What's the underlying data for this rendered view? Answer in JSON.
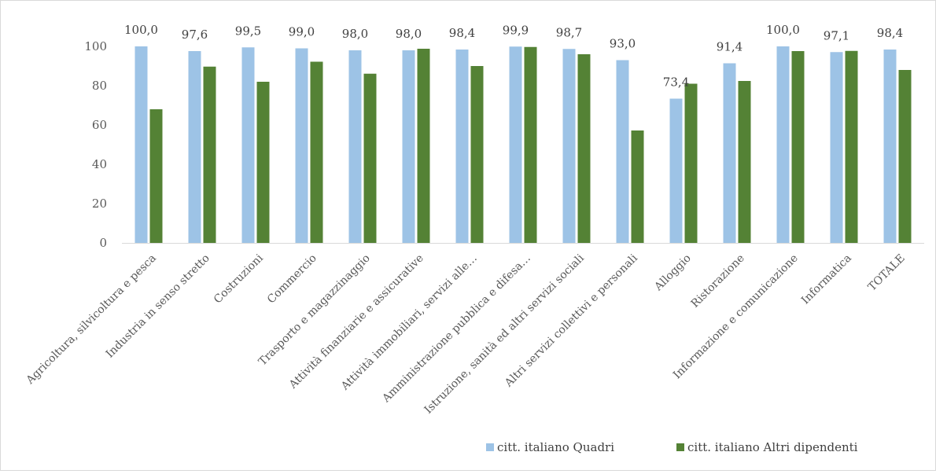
{
  "chart_data": {
    "type": "bar",
    "title": "",
    "xlabel": "",
    "ylabel": "",
    "ylim": [
      0,
      100
    ],
    "yticks": [
      0,
      20,
      40,
      60,
      80,
      100
    ],
    "grid": false,
    "legend_position": "bottom-right",
    "categories": [
      "Agricoltura, silvicoltura e pesca",
      "Industria in senso stretto",
      "Costruzioni",
      "Commercio",
      "Trasporto e magazzinaggio",
      "Attività finanziarie e assicurative",
      "Attività immobiliari, servizi alle…",
      "Amministrazione pubblica e difesa…",
      "Istruzione, sanità ed altri servizi sociali",
      "Altri servizi collettivi e personali",
      "Alloggio",
      "Ristorazione",
      "Informazione e comunicazione",
      "Informatica",
      "TOTALE"
    ],
    "series": [
      {
        "name": "citt. italiano  Quadri",
        "color": "#9DC3E6",
        "values": [
          100.0,
          97.6,
          99.5,
          99.0,
          98.0,
          98.0,
          98.4,
          99.9,
          98.7,
          93.0,
          73.4,
          91.4,
          100.0,
          97.1,
          98.4
        ],
        "labels": [
          "100,0",
          "97,6",
          "99,5",
          "99,0",
          "98,0",
          "98,0",
          "98,4",
          "99,9",
          "98,7",
          "93,0",
          "73,4",
          "91,4",
          "100,0",
          "97,1",
          "98,4"
        ]
      },
      {
        "name": "citt. italiano  Altri dipendenti",
        "color": "#548235",
        "values": [
          68,
          89.7,
          82,
          92.2,
          86.1,
          98.8,
          90,
          99.7,
          96,
          57.2,
          81,
          82.4,
          97.6,
          97.7,
          88
        ]
      }
    ]
  }
}
